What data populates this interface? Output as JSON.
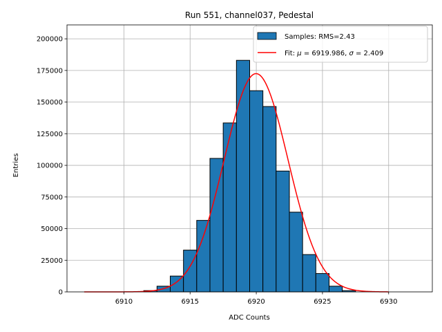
{
  "chart_data": {
    "type": "bar",
    "title": "Run 551, channel037, Pedestal",
    "xlabel": "ADC Counts",
    "ylabel": "Entries",
    "xlim": [
      6905.7,
      6933.3
    ],
    "ylim": [
      0,
      211000
    ],
    "xticks": [
      6910,
      6915,
      6920,
      6925,
      6930
    ],
    "yticks": [
      0,
      25000,
      50000,
      75000,
      100000,
      125000,
      150000,
      175000,
      200000
    ],
    "grid": true,
    "legend_position": "top-right",
    "bin_width": 1,
    "histogram": {
      "name": "Samples: RMS=2.43",
      "color": "#1f77b4",
      "bins": [
        {
          "x": 6912,
          "value": 1000
        },
        {
          "x": 6913,
          "value": 4500
        },
        {
          "x": 6914,
          "value": 12500
        },
        {
          "x": 6915,
          "value": 33000
        },
        {
          "x": 6916,
          "value": 56500
        },
        {
          "x": 6917,
          "value": 105500
        },
        {
          "x": 6918,
          "value": 133500
        },
        {
          "x": 6919,
          "value": 183000
        },
        {
          "x": 6920,
          "value": 159000
        },
        {
          "x": 6921,
          "value": 146500
        },
        {
          "x": 6922,
          "value": 95500
        },
        {
          "x": 6923,
          "value": 63000
        },
        {
          "x": 6924,
          "value": 29500
        },
        {
          "x": 6925,
          "value": 14500
        },
        {
          "x": 6926,
          "value": 4500
        },
        {
          "x": 6927,
          "value": 1000
        }
      ]
    },
    "fit": {
      "name": "Fit: μ = 6919.986, σ = 2.409",
      "name_parts": {
        "prefix": "Fit: ",
        "mu_symbol": "μ",
        "mid": " = 6919.986, ",
        "sigma_symbol": "σ",
        "suffix": " = 2.409"
      },
      "color": "#ff0000",
      "mu": 6919.986,
      "sigma": 2.409,
      "amplitude": 172500,
      "x_range": [
        6907,
        6930
      ]
    }
  }
}
